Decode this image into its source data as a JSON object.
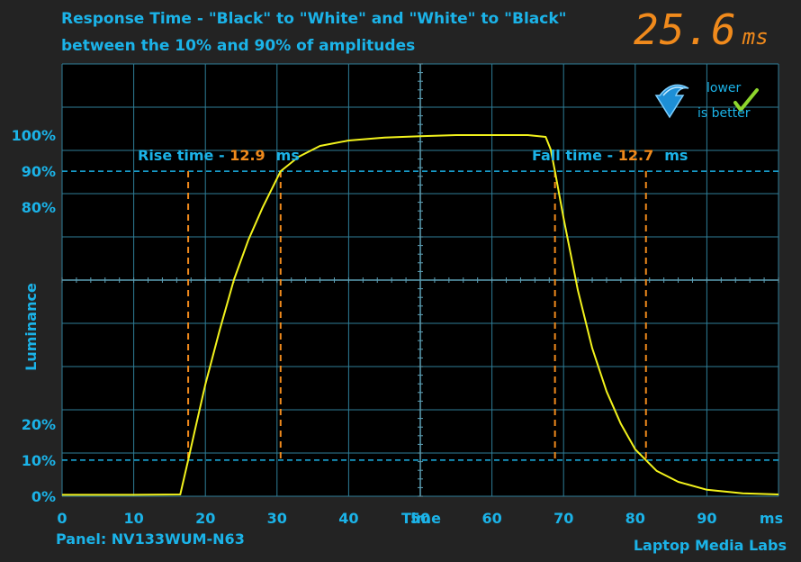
{
  "title": {
    "line1": "Response Time - \"Black\" to \"White\" and \"White\" to \"Black\"",
    "line2": "between the 10% and 90% of amplitudes"
  },
  "total_response": {
    "value": "25.6",
    "unit": "ms"
  },
  "badge": {
    "line1": "lower",
    "line2": "is better",
    "icons": [
      "down-arrow-icon",
      "check-icon"
    ]
  },
  "footer": {
    "panel": "Panel: NV133WUM-N63",
    "credit": "Laptop Media Labs"
  },
  "colors": {
    "background": "#232323",
    "grid": "#2f7e98",
    "text": "#1bb3e8",
    "accent": "#f08a1c",
    "trace": "#f2f21c"
  },
  "chart_data": {
    "type": "line",
    "xlabel": "Time",
    "xunit": "ms",
    "ylabel": "Luminance",
    "xlim": [
      0,
      100
    ],
    "ylim": [
      0,
      100
    ],
    "x_ticks": [
      0,
      10,
      20,
      30,
      40,
      50,
      60,
      70,
      80,
      90
    ],
    "y_ticks": [
      {
        "value": 0,
        "label": "0%"
      },
      {
        "value": 10,
        "label": "10%"
      },
      {
        "value": 20,
        "label": "20%"
      },
      {
        "value": 80,
        "label": "80%"
      },
      {
        "value": 90,
        "label": "90%"
      },
      {
        "value": 100,
        "label": "100%"
      }
    ],
    "grid": true,
    "reference_lines": [
      10,
      90
    ],
    "annotations": {
      "rise": {
        "label": "Rise time - ",
        "value": "12.9",
        "unit": "ms",
        "markers": [
          17.6,
          30.5
        ]
      },
      "fall": {
        "label": "Fall time - ",
        "value": "12.7",
        "unit": "ms",
        "markers": [
          68.8,
          81.5
        ]
      }
    },
    "series": [
      {
        "x": [
          0,
          10,
          16.5,
          17.6,
          18.5,
          20,
          22,
          24,
          26,
          28,
          30.5,
          33,
          36,
          40,
          45,
          50,
          55,
          60,
          65,
          67.5,
          68.2,
          68.8,
          70,
          72,
          74,
          76,
          78,
          80,
          81.5,
          83,
          86,
          90,
          95,
          100
        ],
        "y": [
          0.4,
          0.4,
          0.5,
          10,
          18,
          31,
          46,
          60,
          71,
          80,
          90,
          94,
          97,
          98.5,
          99.3,
          99.7,
          100,
          100,
          100,
          99.5,
          96,
          90,
          77,
          57,
          41,
          29,
          20,
          13,
          10,
          7,
          4,
          1.8,
          0.8,
          0.5
        ]
      }
    ]
  }
}
